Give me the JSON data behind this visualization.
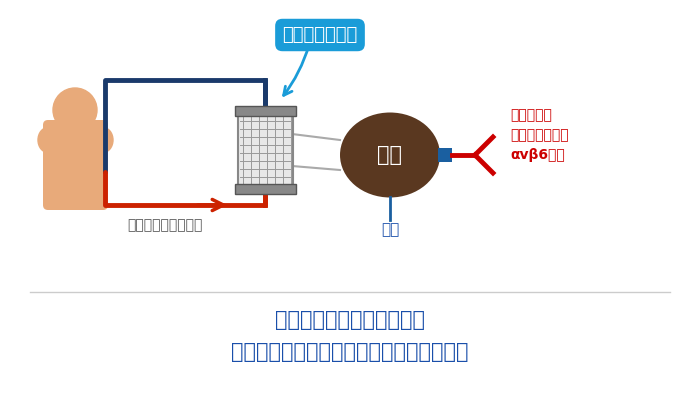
{
  "bg_color": "#ffffff",
  "title_line1": "＜分子標的カラムの特徴＞",
  "title_line2": "特定の自己抗体のみを特異的に吸着・除去",
  "title_color": "#1a4faa",
  "label_column": "分子標的カラム",
  "label_column_bg": "#1a9cd8",
  "label_column_text": "#ffffff",
  "label_carrier": "担体",
  "label_antigen": "抗原",
  "label_antigen_color": "#1a4faa",
  "label_blood_circ": "患者血液を体外循環",
  "label_blood_circ_color": "#555555",
  "label_antibody_line1": "患者血液中",
  "label_antibody_line2": "抗インテグリン",
  "label_antibody_line3": "αvβ6抗体",
  "label_antibody_color": "#cc0000",
  "person_skin": "#e8aa7a",
  "person_outline": "#e8aa7a",
  "dark_blue": "#1a3a6b",
  "red_arrow": "#cc2200",
  "column_gray": "#aaaaaa",
  "carrier_brown": "#5a3820",
  "blue_label_line": "#1a9cd8"
}
